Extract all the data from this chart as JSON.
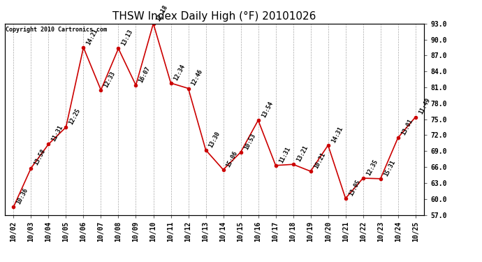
{
  "title": "THSW Index Daily High (°F) 20101026",
  "copyright": "Copyright 2010 Cartronics.com",
  "x_labels": [
    "10/02",
    "10/03",
    "10/04",
    "10/05",
    "10/06",
    "10/07",
    "10/08",
    "10/09",
    "10/10",
    "10/11",
    "10/12",
    "10/13",
    "10/14",
    "10/15",
    "10/16",
    "10/17",
    "10/18",
    "10/19",
    "10/20",
    "10/21",
    "10/22",
    "10/23",
    "10/24",
    "10/25"
  ],
  "y_values": [
    58.5,
    65.8,
    70.3,
    73.5,
    88.5,
    80.5,
    88.3,
    81.4,
    93.0,
    81.8,
    80.8,
    69.2,
    65.5,
    68.8,
    74.8,
    66.3,
    66.5,
    65.2,
    70.1,
    60.1,
    63.9,
    63.8,
    71.5,
    75.4
  ],
  "time_labels": [
    "10:36",
    "13:58",
    "11:31",
    "12:25",
    "14:21",
    "12:33",
    "13:13",
    "16:07",
    "12:18",
    "12:34",
    "12:46",
    "13:30",
    "15:06",
    "10:53",
    "13:54",
    "11:31",
    "13:21",
    "10:21",
    "14:31",
    "13:05",
    "12:35",
    "15:31",
    "13:01",
    "11:49"
  ],
  "line_color": "#cc0000",
  "marker_color": "#cc0000",
  "background_color": "#ffffff",
  "grid_color": "#aaaaaa",
  "ylim": [
    57.0,
    93.0
  ],
  "yticks": [
    57.0,
    60.0,
    63.0,
    66.0,
    69.0,
    72.0,
    75.0,
    78.0,
    81.0,
    84.0,
    87.0,
    90.0,
    93.0
  ],
  "title_fontsize": 11,
  "label_fontsize": 6,
  "copyright_fontsize": 6,
  "tick_fontsize": 7
}
